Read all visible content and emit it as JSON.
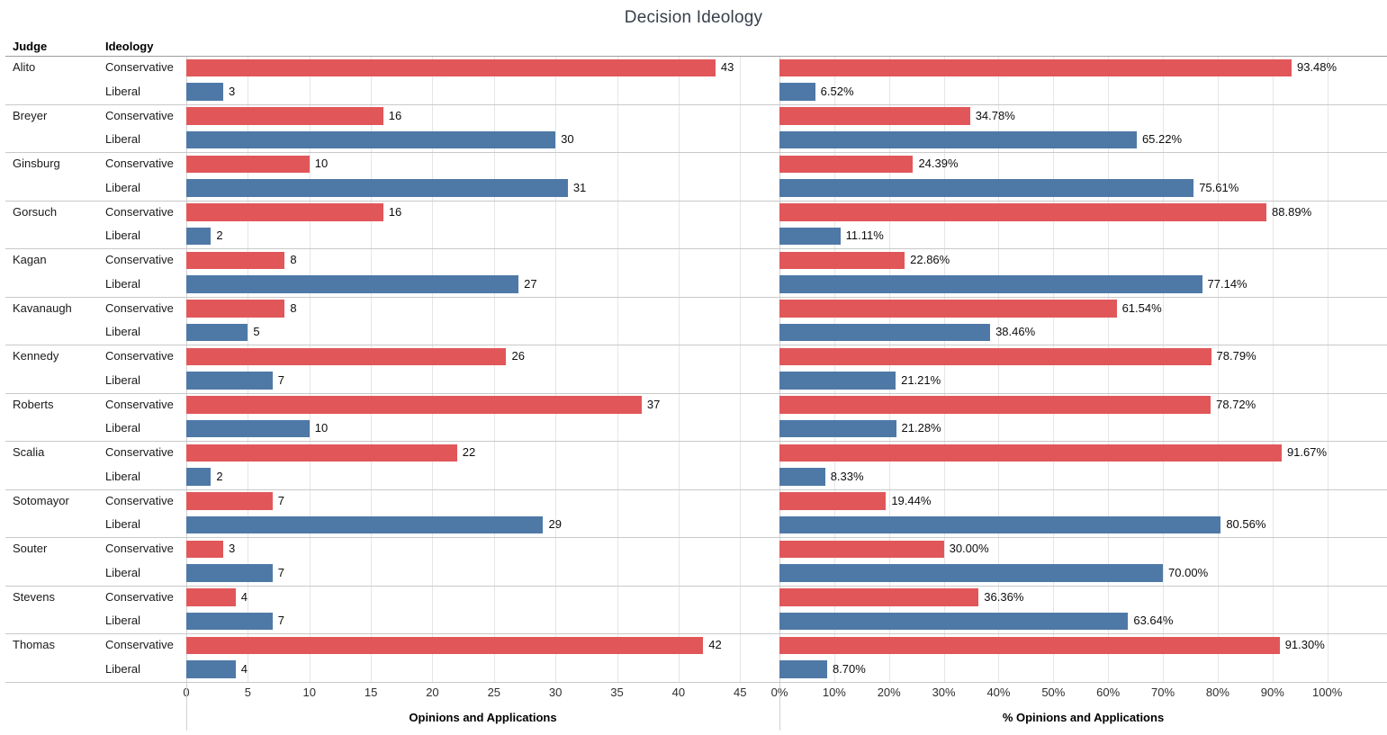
{
  "title": "Decision Ideology",
  "table": {
    "judge_header": "Judge",
    "ideology_header": "Ideology"
  },
  "colors": {
    "conservative": "#E15759",
    "liberal": "#4E79A7",
    "gridline": "#e6e6e6",
    "group_separator": "#c9c9c9",
    "header_line": "#9d9d9d"
  },
  "chart_data": {
    "type": "bar",
    "orientation": "horizontal",
    "grid": true,
    "legend": "none",
    "ideologies": [
      "Conservative",
      "Liberal"
    ],
    "count_axis": {
      "title": "Opinions and Applications",
      "ticks": [
        0,
        5,
        10,
        15,
        20,
        25,
        30,
        35,
        40,
        45
      ],
      "tick_labels": [
        "0",
        "5",
        "10",
        "15",
        "20",
        "25",
        "30",
        "35",
        "40",
        "45"
      ],
      "max": 48.2
    },
    "pct_axis": {
      "title": "% Opinions and Applications",
      "ticks": [
        0,
        10,
        20,
        30,
        40,
        50,
        60,
        70,
        80,
        90,
        100
      ],
      "tick_labels": [
        "0%",
        "10%",
        "20%",
        "30%",
        "40%",
        "50%",
        "60%",
        "70%",
        "80%",
        "90%",
        "100%"
      ],
      "max": 110.9
    },
    "judges": [
      {
        "name": "Alito",
        "rows": [
          {
            "ideology": "Conservative",
            "count": 43,
            "count_label": "43",
            "pct": 93.48,
            "pct_label": "93.48%"
          },
          {
            "ideology": "Liberal",
            "count": 3,
            "count_label": "3",
            "pct": 6.52,
            "pct_label": "6.52%"
          }
        ]
      },
      {
        "name": "Breyer",
        "rows": [
          {
            "ideology": "Conservative",
            "count": 16,
            "count_label": "16",
            "pct": 34.78,
            "pct_label": "34.78%"
          },
          {
            "ideology": "Liberal",
            "count": 30,
            "count_label": "30",
            "pct": 65.22,
            "pct_label": "65.22%"
          }
        ]
      },
      {
        "name": "Ginsburg",
        "rows": [
          {
            "ideology": "Conservative",
            "count": 10,
            "count_label": "10",
            "pct": 24.39,
            "pct_label": "24.39%"
          },
          {
            "ideology": "Liberal",
            "count": 31,
            "count_label": "31",
            "pct": 75.61,
            "pct_label": "75.61%"
          }
        ]
      },
      {
        "name": "Gorsuch",
        "rows": [
          {
            "ideology": "Conservative",
            "count": 16,
            "count_label": "16",
            "pct": 88.89,
            "pct_label": "88.89%"
          },
          {
            "ideology": "Liberal",
            "count": 2,
            "count_label": "2",
            "pct": 11.11,
            "pct_label": "11.11%"
          }
        ]
      },
      {
        "name": "Kagan",
        "rows": [
          {
            "ideology": "Conservative",
            "count": 8,
            "count_label": "8",
            "pct": 22.86,
            "pct_label": "22.86%"
          },
          {
            "ideology": "Liberal",
            "count": 27,
            "count_label": "27",
            "pct": 77.14,
            "pct_label": "77.14%"
          }
        ]
      },
      {
        "name": "Kavanaugh",
        "rows": [
          {
            "ideology": "Conservative",
            "count": 8,
            "count_label": "8",
            "pct": 61.54,
            "pct_label": "61.54%"
          },
          {
            "ideology": "Liberal",
            "count": 5,
            "count_label": "5",
            "pct": 38.46,
            "pct_label": "38.46%"
          }
        ]
      },
      {
        "name": "Kennedy",
        "rows": [
          {
            "ideology": "Conservative",
            "count": 26,
            "count_label": "26",
            "pct": 78.79,
            "pct_label": "78.79%"
          },
          {
            "ideology": "Liberal",
            "count": 7,
            "count_label": "7",
            "pct": 21.21,
            "pct_label": "21.21%"
          }
        ]
      },
      {
        "name": "Roberts",
        "rows": [
          {
            "ideology": "Conservative",
            "count": 37,
            "count_label": "37",
            "pct": 78.72,
            "pct_label": "78.72%"
          },
          {
            "ideology": "Liberal",
            "count": 10,
            "count_label": "10",
            "pct": 21.28,
            "pct_label": "21.28%"
          }
        ]
      },
      {
        "name": "Scalia",
        "rows": [
          {
            "ideology": "Conservative",
            "count": 22,
            "count_label": "22",
            "pct": 91.67,
            "pct_label": "91.67%"
          },
          {
            "ideology": "Liberal",
            "count": 2,
            "count_label": "2",
            "pct": 8.33,
            "pct_label": "8.33%"
          }
        ]
      },
      {
        "name": "Sotomayor",
        "rows": [
          {
            "ideology": "Conservative",
            "count": 7,
            "count_label": "7",
            "pct": 19.44,
            "pct_label": "19.44%"
          },
          {
            "ideology": "Liberal",
            "count": 29,
            "count_label": "29",
            "pct": 80.56,
            "pct_label": "80.56%"
          }
        ]
      },
      {
        "name": "Souter",
        "rows": [
          {
            "ideology": "Conservative",
            "count": 3,
            "count_label": "3",
            "pct": 30.0,
            "pct_label": "30.00%"
          },
          {
            "ideology": "Liberal",
            "count": 7,
            "count_label": "7",
            "pct": 70.0,
            "pct_label": "70.00%"
          }
        ]
      },
      {
        "name": "Stevens",
        "rows": [
          {
            "ideology": "Conservative",
            "count": 4,
            "count_label": "4",
            "pct": 36.36,
            "pct_label": "36.36%"
          },
          {
            "ideology": "Liberal",
            "count": 7,
            "count_label": "7",
            "pct": 63.64,
            "pct_label": "63.64%"
          }
        ]
      },
      {
        "name": "Thomas",
        "rows": [
          {
            "ideology": "Conservative",
            "count": 42,
            "count_label": "42",
            "pct": 91.3,
            "pct_label": "91.30%"
          },
          {
            "ideology": "Liberal",
            "count": 4,
            "count_label": "4",
            "pct": 8.7,
            "pct_label": "8.70%"
          }
        ]
      }
    ]
  }
}
